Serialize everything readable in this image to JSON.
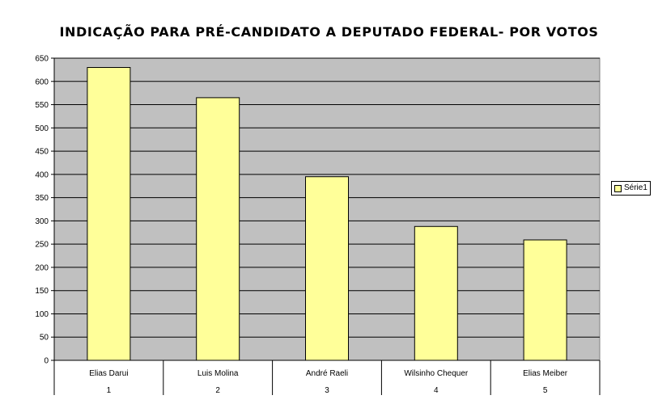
{
  "chart_data": {
    "type": "bar",
    "title": "INDICAÇÃO PARA PRÉ-CANDIDATO A DEPUTADO FEDERAL- POR VOTOS",
    "categories": [
      "Elias Darui",
      "Luis Molina",
      "André Raeli",
      "Wilsinho Chequer",
      "Elias Meiber"
    ],
    "category_numbers": [
      "1",
      "2",
      "3",
      "4",
      "5"
    ],
    "series": [
      {
        "name": "Série1",
        "values": [
          630,
          565,
          395,
          288,
          259
        ]
      }
    ],
    "ylim": [
      0,
      650
    ],
    "yticks": [
      "0",
      "50",
      "100",
      "150",
      "200",
      "250",
      "300",
      "350",
      "400",
      "450",
      "500",
      "550",
      "600",
      "650"
    ],
    "grid": true,
    "legend_position": "right",
    "colors": {
      "bar": "#ffff99",
      "plot_background": "#c0c0c0",
      "bar_border": "#000000"
    }
  }
}
